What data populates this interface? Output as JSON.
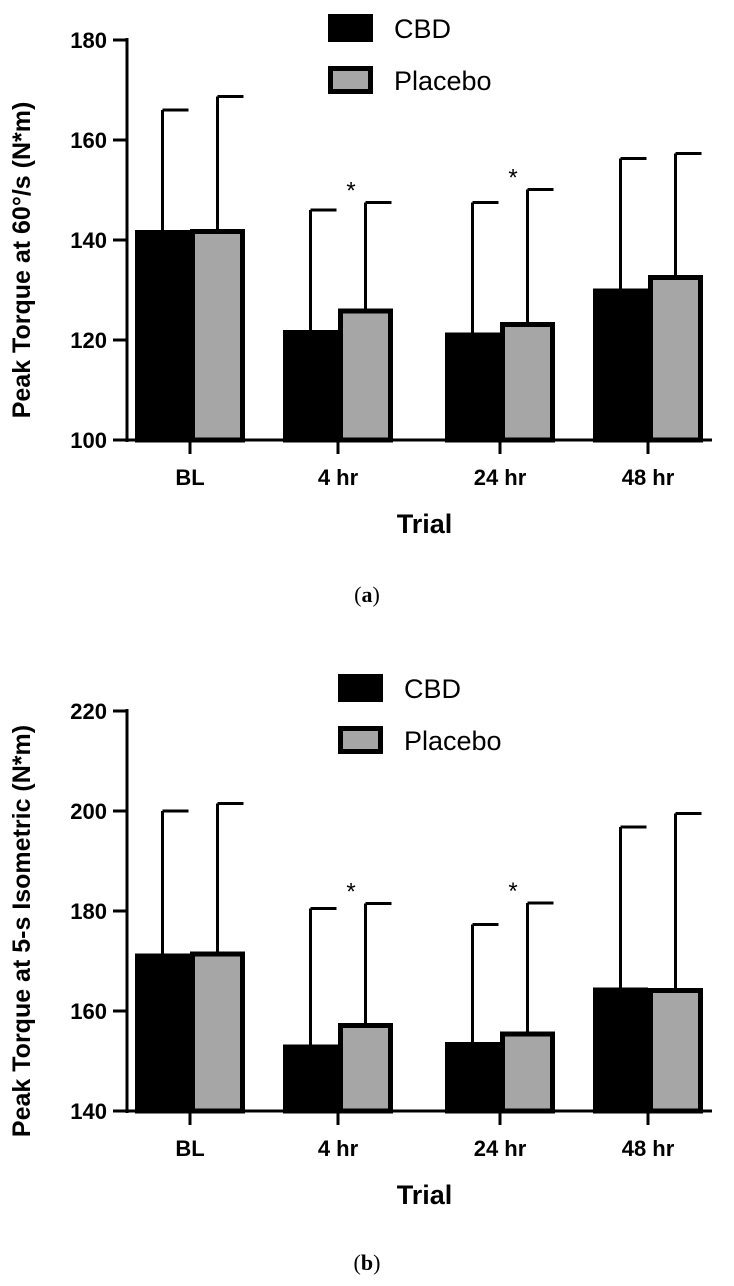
{
  "chart_data": [
    {
      "type": "bar",
      "panel_label": "a",
      "categories": [
        "BL",
        "4 hr",
        "24 hr",
        "48 hr"
      ],
      "series": [
        {
          "name": "CBD",
          "values": [
            142,
            122,
            121.5,
            130.3
          ],
          "error_upper": [
            166,
            146,
            147.5,
            156.3
          ],
          "color": "#000000"
        },
        {
          "name": "Placebo",
          "values": [
            142.2,
            126.3,
            123.6,
            133
          ],
          "error_upper": [
            168.7,
            147.5,
            150.1,
            157.3
          ],
          "color": "#a6a6a6"
        }
      ],
      "significance_marks": [
        {
          "category": "4 hr",
          "text": "*"
        },
        {
          "category": "24 hr",
          "text": "*"
        }
      ],
      "xlabel": "Trial",
      "ylabel": "Peak Torque at 60°/s (N*m)",
      "ylim": [
        100,
        180
      ],
      "yticks": [
        100,
        120,
        140,
        160,
        180
      ],
      "legend": "top"
    },
    {
      "type": "bar",
      "panel_label": "b",
      "categories": [
        "BL",
        "4 hr",
        "24 hr",
        "48 hr"
      ],
      "series": [
        {
          "name": "CBD",
          "values": [
            171.5,
            153.3,
            153.8,
            164.7
          ],
          "error_upper": [
            200,
            180.5,
            177.3,
            196.8
          ],
          "color": "#000000"
        },
        {
          "name": "Placebo",
          "values": [
            171.9,
            157.6,
            155.9,
            164.6
          ],
          "error_upper": [
            201.5,
            181.5,
            181.6,
            199.5
          ],
          "color": "#a6a6a6"
        }
      ],
      "significance_marks": [
        {
          "category": "4 hr",
          "text": "*"
        },
        {
          "category": "24 hr",
          "text": "*"
        }
      ],
      "xlabel": "Trial",
      "ylabel": "Peak Torque at 5-s Isometric (N*m)",
      "ylim": [
        140,
        220
      ],
      "yticks": [
        140,
        160,
        180,
        200,
        220
      ],
      "legend": "top"
    }
  ]
}
